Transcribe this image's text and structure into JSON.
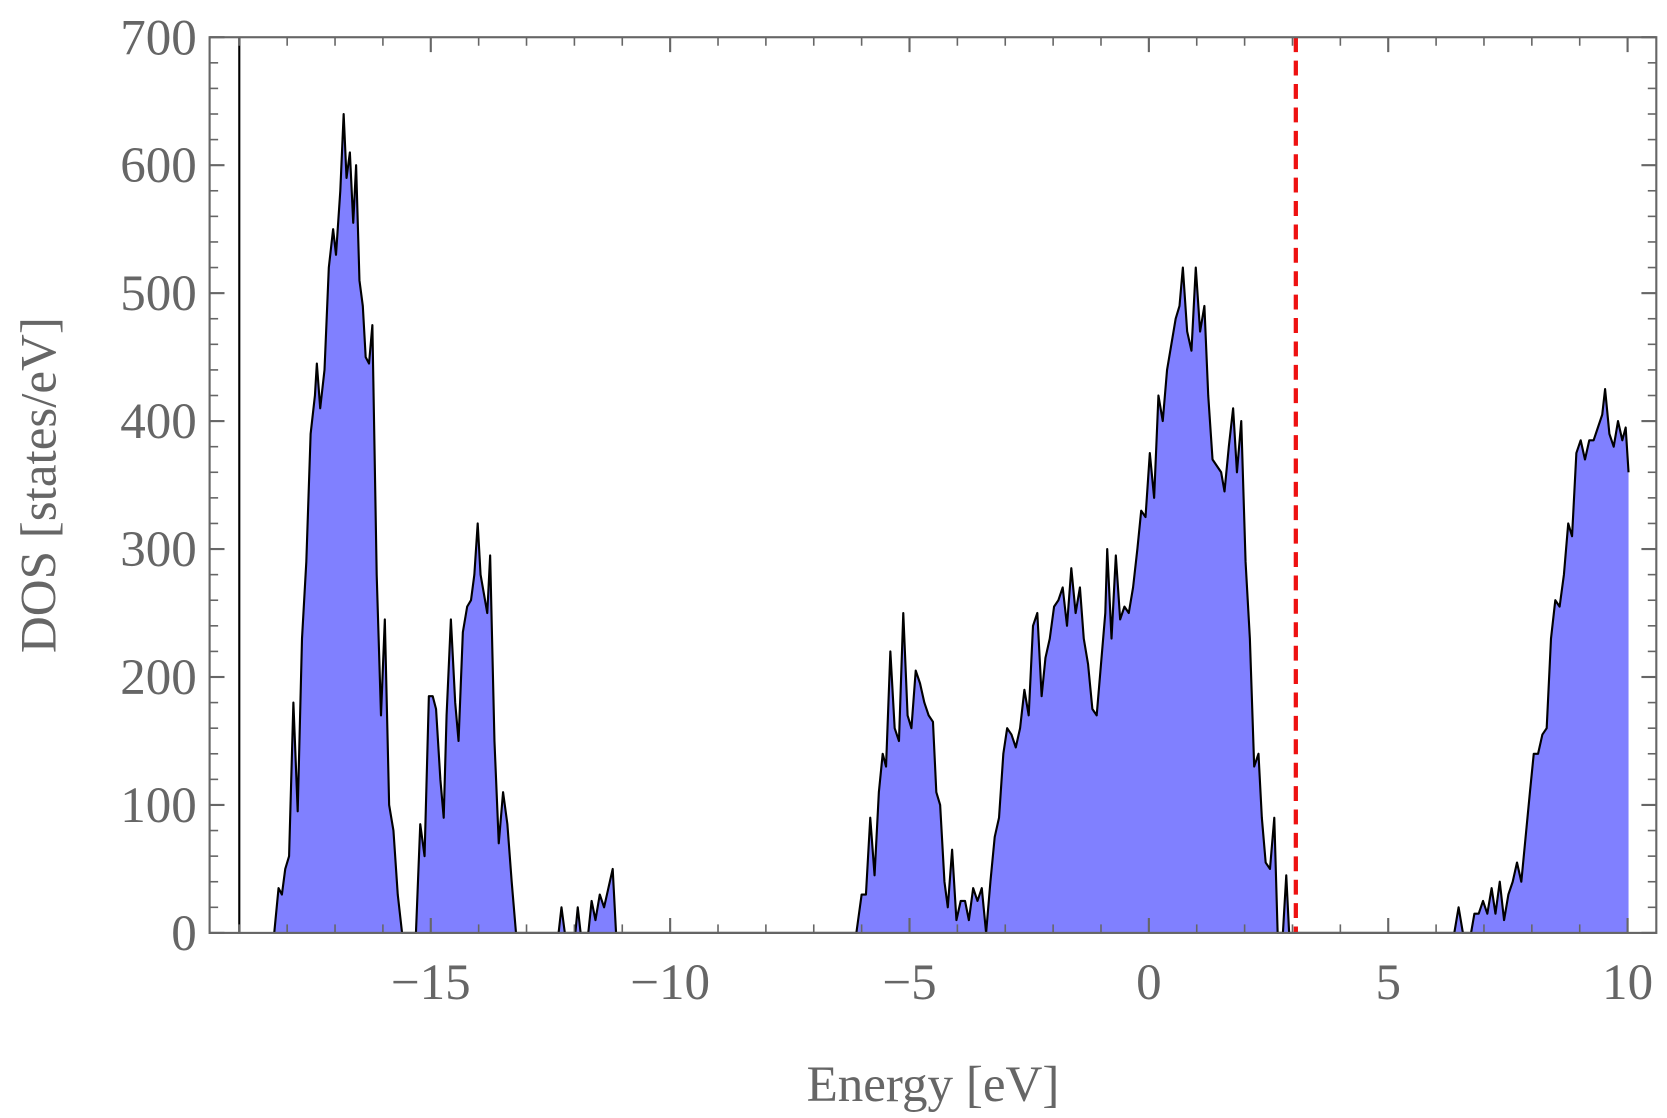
{
  "chart_data": {
    "type": "area",
    "xlabel": "Energy [eV]",
    "ylabel": "DOS [states/eV]",
    "xlim": [
      -19.62,
      10.6
    ],
    "ylim": [
      0,
      700
    ],
    "xticks": [
      {
        "value": -15,
        "label": "−15"
      },
      {
        "value": -10,
        "label": "−10"
      },
      {
        "value": -5,
        "label": "−5"
      },
      0,
      5,
      10
    ],
    "yticks": [
      0,
      100,
      200,
      300,
      400,
      500,
      600,
      700
    ],
    "x_minor_divisions": 5,
    "y_minor_divisions": 5,
    "x": [
      -18.27,
      -18.18,
      -18.11,
      -18.04,
      -17.96,
      -17.87,
      -17.78,
      -17.69,
      -17.6,
      -17.51,
      -17.42,
      -17.38,
      -17.31,
      -17.22,
      -17.13,
      -17.04,
      -16.98,
      -16.89,
      -16.82,
      -16.76,
      -16.69,
      -16.62,
      -16.56,
      -16.49,
      -16.42,
      -16.36,
      -16.29,
      -16.22,
      -16.13,
      -16.04,
      -15.96,
      -15.87,
      -15.78,
      -15.69,
      -15.6,
      -15.31,
      -15.22,
      -15.13,
      -15.04,
      -14.96,
      -14.89,
      -14.8,
      -14.73,
      -14.67,
      -14.58,
      -14.49,
      -14.42,
      -14.33,
      -14.24,
      -14.16,
      -14.09,
      -14.02,
      -13.96,
      -13.89,
      -13.82,
      -13.76,
      -13.67,
      -13.58,
      -13.49,
      -13.4,
      -13.31,
      -13.22,
      -12.33,
      -12.27,
      -12.2,
      -11.98,
      -11.93,
      -11.87,
      -11.71,
      -11.64,
      -11.56,
      -11.47,
      -11.38,
      -11.29,
      -11.2,
      -11.13,
      -6.11,
      -6.0,
      -5.91,
      -5.82,
      -5.73,
      -5.64,
      -5.56,
      -5.49,
      -5.4,
      -5.31,
      -5.22,
      -5.13,
      -5.04,
      -4.96,
      -4.87,
      -4.78,
      -4.69,
      -4.6,
      -4.51,
      -4.44,
      -4.36,
      -4.27,
      -4.2,
      -4.11,
      -4.02,
      -3.93,
      -3.84,
      -3.76,
      -3.67,
      -3.58,
      -3.49,
      -3.4,
      -3.31,
      -3.22,
      -3.13,
      -3.04,
      -2.96,
      -2.87,
      -2.78,
      -2.69,
      -2.6,
      -2.51,
      -2.42,
      -2.33,
      -2.24,
      -2.16,
      -2.07,
      -1.98,
      -1.89,
      -1.8,
      -1.71,
      -1.62,
      -1.53,
      -1.44,
      -1.36,
      -1.27,
      -1.18,
      -1.09,
      -1.0,
      -0.91,
      -0.87,
      -0.78,
      -0.69,
      -0.6,
      -0.51,
      -0.42,
      -0.33,
      -0.24,
      -0.16,
      -0.07,
      0.02,
      0.11,
      0.2,
      0.29,
      0.38,
      0.47,
      0.56,
      0.64,
      0.71,
      0.8,
      0.89,
      0.98,
      1.07,
      1.16,
      1.24,
      1.33,
      1.42,
      1.51,
      1.58,
      1.67,
      1.76,
      1.84,
      1.93,
      2.02,
      2.11,
      2.2,
      2.29,
      2.36,
      2.44,
      2.53,
      2.62,
      2.69,
      2.8,
      2.87,
      2.93,
      6.38,
      6.47,
      6.56,
      6.73,
      6.8,
      6.89,
      6.98,
      7.07,
      7.16,
      7.24,
      7.33,
      7.42,
      7.51,
      7.6,
      7.69,
      7.78,
      7.87,
      7.96,
      8.04,
      8.13,
      8.22,
      8.31,
      8.4,
      8.49,
      8.58,
      8.67,
      8.76,
      8.84,
      8.93,
      9.02,
      9.11,
      9.2,
      9.29,
      9.38,
      9.47,
      9.53,
      9.62,
      9.71,
      9.8,
      9.89,
      9.96,
      10.02
    ],
    "series": [
      {
        "color": "#8080ff",
        "line_color": "#000000",
        "values": [
          0,
          35,
          30,
          50,
          60,
          180,
          95,
          230,
          290,
          390,
          420,
          445,
          410,
          440,
          520,
          550,
          530,
          580,
          640,
          590,
          610,
          555,
          600,
          510,
          490,
          450,
          445,
          475,
          280,
          170,
          245,
          100,
          80,
          30,
          0,
          0,
          85,
          60,
          185,
          185,
          175,
          120,
          90,
          170,
          245,
          180,
          150,
          235,
          255,
          260,
          280,
          320,
          280,
          265,
          250,
          295,
          150,
          70,
          110,
          85,
          40,
          0,
          0,
          20,
          0,
          0,
          20,
          0,
          0,
          25,
          10,
          30,
          20,
          35,
          50,
          0,
          0,
          30,
          30,
          90,
          45,
          110,
          140,
          130,
          220,
          160,
          150,
          250,
          170,
          160,
          205,
          195,
          180,
          170,
          165,
          110,
          100,
          40,
          20,
          65,
          10,
          25,
          25,
          10,
          35,
          25,
          35,
          0,
          40,
          75,
          90,
          140,
          160,
          155,
          145,
          160,
          190,
          170,
          240,
          250,
          185,
          215,
          230,
          255,
          260,
          270,
          240,
          285,
          250,
          270,
          230,
          210,
          175,
          170,
          210,
          250,
          300,
          230,
          295,
          245,
          255,
          250,
          270,
          300,
          330,
          325,
          375,
          340,
          420,
          400,
          440,
          460,
          480,
          490,
          520,
          470,
          455,
          520,
          470,
          490,
          420,
          370,
          365,
          360,
          345,
          380,
          410,
          360,
          400,
          290,
          230,
          130,
          140,
          90,
          55,
          50,
          90,
          0,
          0,
          45,
          0,
          0,
          20,
          0,
          0,
          15,
          15,
          25,
          15,
          35,
          15,
          40,
          10,
          30,
          40,
          55,
          40,
          75,
          110,
          140,
          140,
          155,
          160,
          230,
          260,
          255,
          280,
          320,
          310,
          375,
          385,
          370,
          385,
          385,
          395,
          405,
          425,
          390,
          380,
          400,
          385,
          395,
          360
        ]
      }
    ],
    "vlines": [
      {
        "x": -19,
        "color": "#000000",
        "dashed": false
      },
      {
        "x": 3.07,
        "color": "#ee1111",
        "dashed": true
      }
    ]
  }
}
